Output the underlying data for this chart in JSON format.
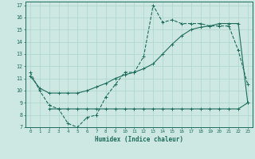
{
  "xlabel": "Humidex (Indice chaleur)",
  "xlim": [
    -0.5,
    23.5
  ],
  "ylim": [
    7,
    17.3
  ],
  "yticks": [
    7,
    8,
    9,
    10,
    11,
    12,
    13,
    14,
    15,
    16,
    17
  ],
  "xticks": [
    0,
    1,
    2,
    3,
    4,
    5,
    6,
    7,
    8,
    9,
    10,
    11,
    12,
    13,
    14,
    15,
    16,
    17,
    18,
    19,
    20,
    21,
    22,
    23
  ],
  "bg_color": "#cde8e2",
  "line_color": "#1c6b5c",
  "grid_color": "#b0d8d0",
  "line1_x": [
    0,
    1,
    2,
    3,
    4,
    5,
    6,
    7,
    8,
    9,
    10,
    11,
    12,
    13,
    14,
    15,
    16,
    17,
    18,
    19,
    20,
    21,
    22,
    23
  ],
  "line1_y": [
    11.5,
    10.0,
    8.8,
    8.5,
    7.3,
    7.0,
    7.8,
    8.0,
    9.5,
    10.5,
    11.5,
    11.5,
    12.8,
    17.0,
    15.6,
    15.8,
    15.5,
    15.5,
    15.5,
    15.3,
    15.3,
    15.3,
    13.3,
    10.5
  ],
  "line2_x": [
    0,
    1,
    2,
    3,
    4,
    5,
    6,
    7,
    8,
    9,
    10,
    11,
    12,
    13,
    14,
    15,
    16,
    17,
    18,
    19,
    20,
    21,
    22,
    23
  ],
  "line2_y": [
    11.2,
    10.2,
    9.8,
    9.8,
    9.8,
    9.8,
    10.0,
    10.3,
    10.6,
    11.0,
    11.3,
    11.5,
    11.8,
    12.2,
    13.0,
    13.8,
    14.5,
    15.0,
    15.2,
    15.3,
    15.5,
    15.5,
    15.5,
    9.0
  ],
  "line3_x": [
    2,
    3,
    4,
    5,
    6,
    7,
    8,
    9,
    10,
    11,
    12,
    13,
    14,
    15,
    16,
    17,
    18,
    19,
    20,
    21,
    22,
    23
  ],
  "line3_y": [
    8.5,
    8.5,
    8.5,
    8.5,
    8.5,
    8.5,
    8.5,
    8.5,
    8.5,
    8.5,
    8.5,
    8.5,
    8.5,
    8.5,
    8.5,
    8.5,
    8.5,
    8.5,
    8.5,
    8.5,
    8.5,
    9.0
  ]
}
